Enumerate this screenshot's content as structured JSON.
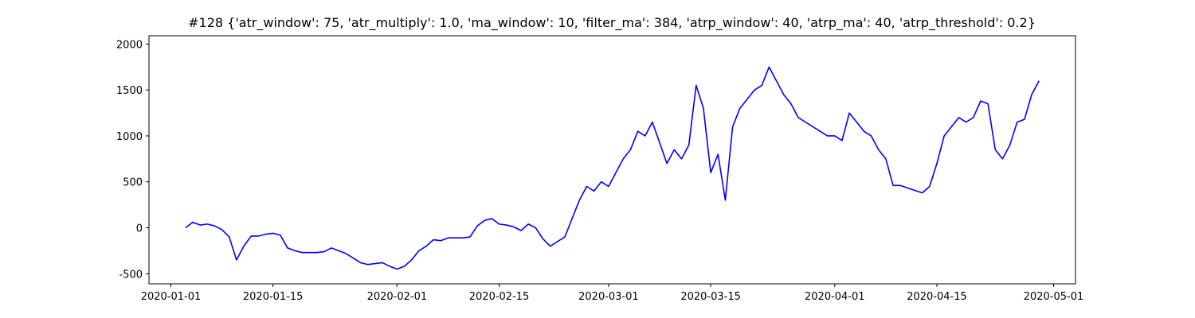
{
  "chart_data": {
    "type": "line",
    "title": "#128 {'atr_window': 75, 'atr_multiply': 1.0, 'ma_window': 10, 'filter_ma': 384, 'atrp_window': 40, 'atrp_ma': 40, 'atrp_threshold': 0.2}",
    "x": [
      "2020-01-03",
      "2020-01-04",
      "2020-01-05",
      "2020-01-06",
      "2020-01-07",
      "2020-01-08",
      "2020-01-09",
      "2020-01-10",
      "2020-01-11",
      "2020-01-12",
      "2020-01-13",
      "2020-01-14",
      "2020-01-15",
      "2020-01-16",
      "2020-01-17",
      "2020-01-18",
      "2020-01-19",
      "2020-01-20",
      "2020-01-21",
      "2020-01-22",
      "2020-01-23",
      "2020-01-24",
      "2020-01-25",
      "2020-01-26",
      "2020-01-27",
      "2020-01-28",
      "2020-01-29",
      "2020-01-30",
      "2020-01-31",
      "2020-02-01",
      "2020-02-02",
      "2020-02-03",
      "2020-02-04",
      "2020-02-05",
      "2020-02-06",
      "2020-02-07",
      "2020-02-08",
      "2020-02-10",
      "2020-02-11",
      "2020-02-12",
      "2020-02-13",
      "2020-02-14",
      "2020-02-15",
      "2020-02-16",
      "2020-02-17",
      "2020-02-18",
      "2020-02-19",
      "2020-02-20",
      "2020-02-21",
      "2020-02-22",
      "2020-02-24",
      "2020-02-25",
      "2020-02-26",
      "2020-02-27",
      "2020-02-28",
      "2020-02-29",
      "2020-03-01",
      "2020-03-02",
      "2020-03-03",
      "2020-03-04",
      "2020-03-05",
      "2020-03-06",
      "2020-03-07",
      "2020-03-09",
      "2020-03-10",
      "2020-03-11",
      "2020-03-12",
      "2020-03-13",
      "2020-03-14",
      "2020-03-15",
      "2020-03-16",
      "2020-03-17",
      "2020-03-18",
      "2020-03-19",
      "2020-03-20",
      "2020-03-21",
      "2020-03-22",
      "2020-03-23",
      "2020-03-24",
      "2020-03-25",
      "2020-03-26",
      "2020-03-27",
      "2020-03-28",
      "2020-03-29",
      "2020-03-30",
      "2020-03-31",
      "2020-04-01",
      "2020-04-02",
      "2020-04-03",
      "2020-04-04",
      "2020-04-05",
      "2020-04-06",
      "2020-04-07",
      "2020-04-08",
      "2020-04-09",
      "2020-04-10",
      "2020-04-13",
      "2020-04-14",
      "2020-04-15",
      "2020-04-16",
      "2020-04-17",
      "2020-04-18",
      "2020-04-19",
      "2020-04-20",
      "2020-04-21",
      "2020-04-22",
      "2020-04-23",
      "2020-04-24",
      "2020-04-25",
      "2020-04-26",
      "2020-04-27",
      "2020-04-28",
      "2020-04-29"
    ],
    "series": [
      {
        "color": "#0000ff",
        "values": [
          0,
          60,
          30,
          40,
          20,
          -20,
          -100,
          -350,
          -200,
          -90,
          -90,
          -70,
          -60,
          -80,
          -220,
          -250,
          -270,
          -270,
          -270,
          -260,
          -220,
          -250,
          -280,
          -330,
          -380,
          -400,
          -390,
          -380,
          -420,
          -450,
          -420,
          -350,
          -250,
          -200,
          -130,
          -140,
          -110,
          -110,
          -100,
          20,
          80,
          100,
          40,
          30,
          10,
          -30,
          40,
          0,
          -120,
          -200,
          -100,
          100,
          300,
          450,
          400,
          500,
          450,
          600,
          750,
          850,
          1050,
          1000,
          1150,
          700,
          850,
          750,
          900,
          1550,
          1300,
          600,
          800,
          300,
          1100,
          1300,
          1400,
          1500,
          1550,
          1750,
          1600,
          1450,
          1350,
          1200,
          1150,
          1100,
          1050,
          1000,
          1000,
          950,
          1250,
          1150,
          1050,
          1000,
          850,
          750,
          460,
          460,
          380,
          450,
          700,
          1000,
          1100,
          1200,
          1150,
          1200,
          1380,
          1350,
          850,
          750,
          900,
          1150,
          1180,
          1450,
          1600
        ]
      }
    ],
    "xlim": [
      "2019-12-29",
      "2020-05-04"
    ],
    "xticks": [
      "2020-01-01",
      "2020-01-15",
      "2020-02-01",
      "2020-02-15",
      "2020-03-01",
      "2020-03-15",
      "2020-04-01",
      "2020-04-15",
      "2020-05-01"
    ],
    "ylim": [
      -610,
      2090
    ],
    "yticks": [
      -500,
      0,
      500,
      1000,
      1500,
      2000
    ]
  }
}
